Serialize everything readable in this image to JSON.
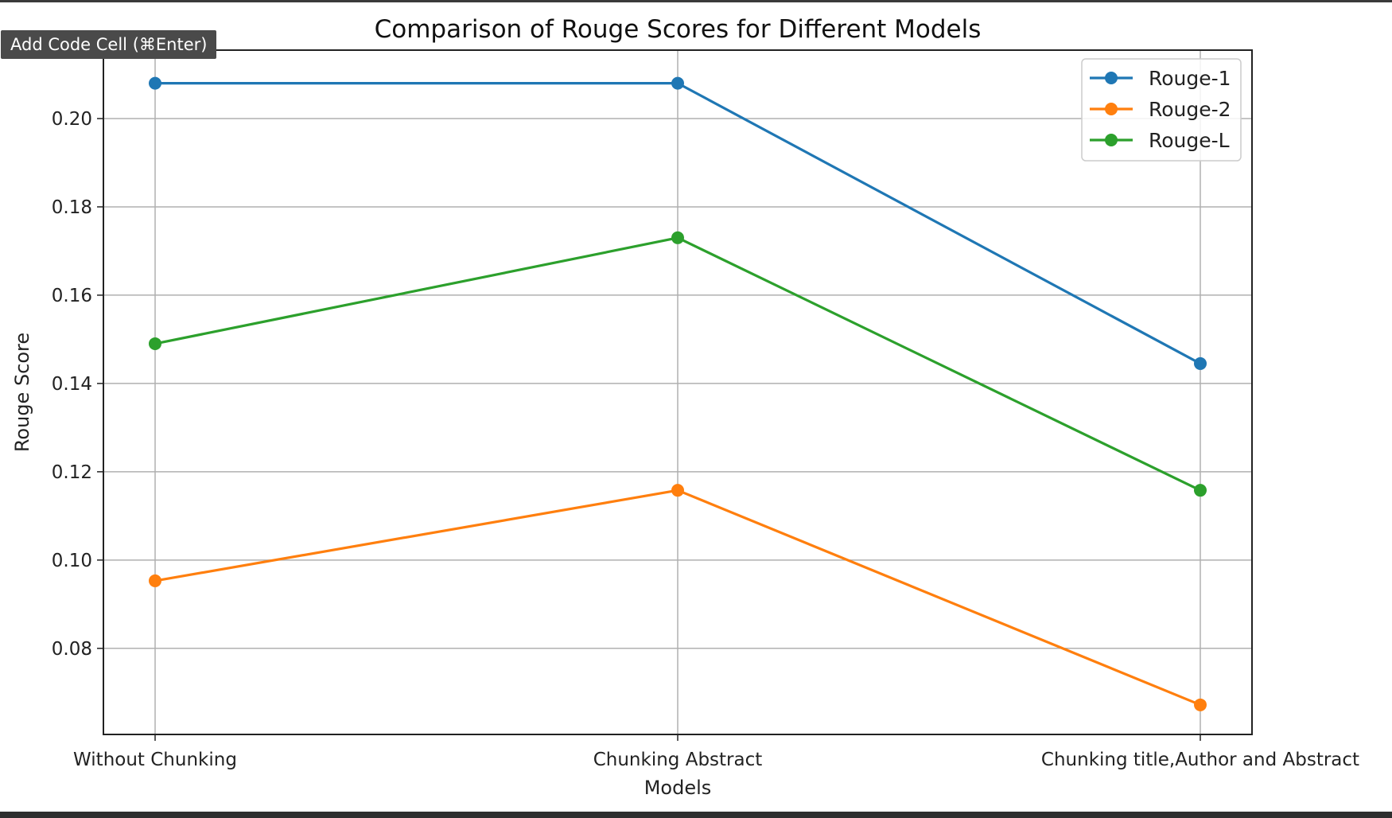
{
  "tooltip": {
    "label": "Add Code Cell (⌘Enter)"
  },
  "chart_data": {
    "type": "line",
    "title": "Comparison of Rouge Scores for Different Models",
    "xlabel": "Models",
    "ylabel": "Rouge Score",
    "categories": [
      "Without Chunking",
      "Chunking Abstract",
      "Chunking title,Author and Abstract"
    ],
    "series": [
      {
        "name": "Rouge-1",
        "color": "#1f77b4",
        "values": [
          0.208,
          0.208,
          0.1445
        ]
      },
      {
        "name": "Rouge-2",
        "color": "#ff7f0e",
        "values": [
          0.0953,
          0.1158,
          0.0672
        ]
      },
      {
        "name": "Rouge-L",
        "color": "#2ca02c",
        "values": [
          0.149,
          0.173,
          0.1158
        ]
      }
    ],
    "yticks": [
      "0.08",
      "0.10",
      "0.12",
      "0.14",
      "0.16",
      "0.18",
      "0.20"
    ],
    "ylim": [
      0.0605,
      0.2155
    ],
    "grid": true,
    "legend_position": "top-right",
    "marker": "circle"
  }
}
